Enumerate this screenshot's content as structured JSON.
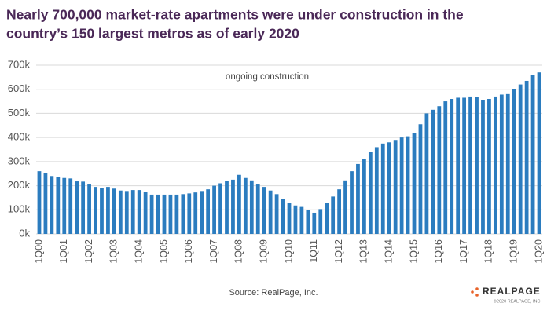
{
  "chart_data": {
    "type": "bar",
    "title": [
      "Nearly 700,000 market-rate apartments were under construction in the",
      "country’s 150 largest metros as of early 2020"
    ],
    "annotation": "ongoing construction",
    "source": "Source: RealPage, Inc.",
    "logo": "REALPAGE",
    "copyright": "©2020 REALPAGE, INC.",
    "color": "#2b7cbf",
    "grid": true,
    "ylim": [
      0,
      700000
    ],
    "yticks": [
      {
        "value": 0,
        "label": "0k"
      },
      {
        "value": 100000,
        "label": "100k"
      },
      {
        "value": 200000,
        "label": "200k"
      },
      {
        "value": 300000,
        "label": "300k"
      },
      {
        "value": 400000,
        "label": "400k"
      },
      {
        "value": 500000,
        "label": "500k"
      },
      {
        "value": 600000,
        "label": "600k"
      },
      {
        "value": 700000,
        "label": "700k"
      }
    ],
    "categories": [
      "1Q00",
      null,
      null,
      null,
      "1Q01",
      null,
      null,
      null,
      "1Q02",
      null,
      null,
      null,
      "1Q03",
      null,
      null,
      null,
      "1Q04",
      null,
      null,
      null,
      "1Q05",
      null,
      null,
      null,
      "1Q06",
      null,
      null,
      null,
      "1Q07",
      null,
      null,
      null,
      "1Q08",
      null,
      null,
      null,
      "1Q09",
      null,
      null,
      null,
      "1Q10",
      null,
      null,
      null,
      "1Q11",
      null,
      null,
      null,
      "1Q12",
      null,
      null,
      null,
      "1Q13",
      null,
      null,
      null,
      "1Q14",
      null,
      null,
      null,
      "1Q15",
      null,
      null,
      null,
      "1Q16",
      null,
      null,
      null,
      "1Q17",
      null,
      null,
      null,
      "1Q18",
      null,
      null,
      null,
      "1Q19",
      null,
      null,
      null,
      "1Q20"
    ],
    "values": [
      260000,
      252000,
      240000,
      235000,
      232000,
      230000,
      218000,
      217000,
      205000,
      195000,
      190000,
      195000,
      188000,
      180000,
      178000,
      182000,
      182000,
      175000,
      163000,
      163000,
      163000,
      163000,
      163000,
      165000,
      168000,
      172000,
      178000,
      185000,
      200000,
      210000,
      220000,
      225000,
      245000,
      232000,
      222000,
      205000,
      195000,
      180000,
      165000,
      145000,
      130000,
      118000,
      112000,
      100000,
      88000,
      103000,
      130000,
      155000,
      185000,
      222000,
      260000,
      290000,
      310000,
      340000,
      360000,
      375000,
      380000,
      390000,
      400000,
      405000,
      420000,
      455000,
      500000,
      515000,
      530000,
      550000,
      560000,
      565000,
      565000,
      570000,
      568000,
      555000,
      560000,
      570000,
      578000,
      580000,
      600000,
      620000,
      635000,
      660000,
      670000
    ]
  }
}
